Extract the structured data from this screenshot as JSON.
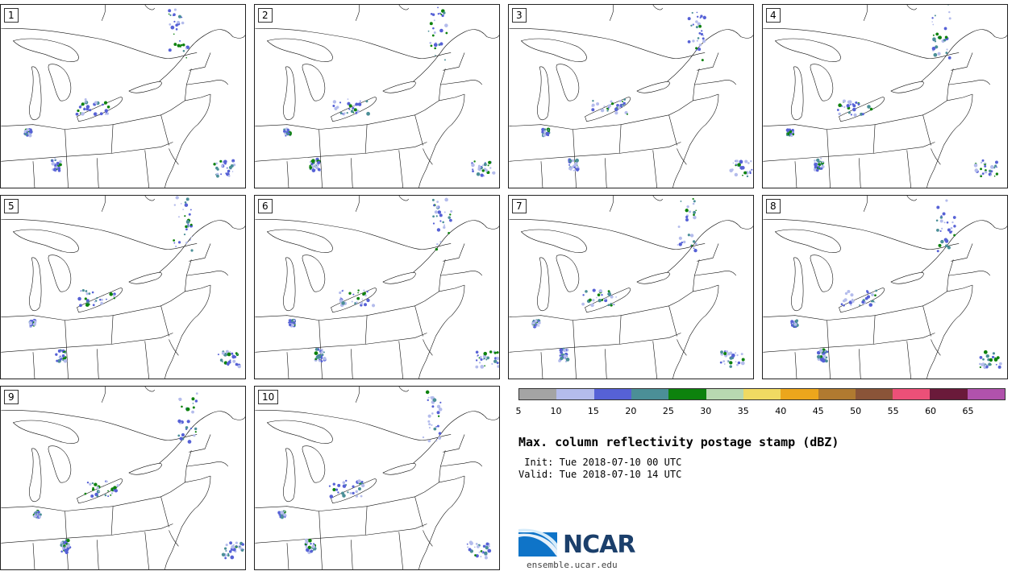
{
  "panels": [
    {
      "label": "1"
    },
    {
      "label": "2"
    },
    {
      "label": "3"
    },
    {
      "label": "4"
    },
    {
      "label": "5"
    },
    {
      "label": "6"
    },
    {
      "label": "7"
    },
    {
      "label": "8"
    },
    {
      "label": "9"
    },
    {
      "label": "10"
    }
  ],
  "colorbar": {
    "ticks": [
      "5",
      "10",
      "15",
      "20",
      "25",
      "30",
      "35",
      "40",
      "45",
      "50",
      "55",
      "60",
      "65"
    ],
    "colors": [
      "#a4a4a4",
      "#b4bcec",
      "#5661d6",
      "#4b8f97",
      "#0d820d",
      "#b8d8b0",
      "#f0da62",
      "#eca61c",
      "#b07a30",
      "#8a5438",
      "#ec5078",
      "#6a1a3a",
      "#b052ac"
    ]
  },
  "title": "Max. column reflectivity postage stamp (dBZ)",
  "init_text": " Init: Tue 2018-07-10 00 UTC",
  "valid_text": "Valid: Tue 2018-07-10 14 UTC",
  "logo": {
    "text": "NCAR",
    "url": "ensemble.ucar.edu"
  }
}
